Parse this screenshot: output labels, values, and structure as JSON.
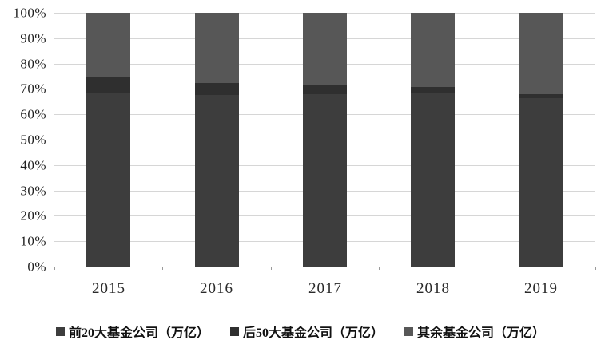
{
  "chart_data": {
    "type": "bar",
    "stacked": true,
    "percent_stacked": true,
    "title": "",
    "xlabel": "",
    "ylabel": "",
    "categories": [
      "2015",
      "2016",
      "2017",
      "2018",
      "2019"
    ],
    "series": [
      {
        "name": "前20大基金公司（万亿）",
        "color": "#3d3d3d",
        "values": [
          68.5,
          67.5,
          68.0,
          68.5,
          66.4
        ]
      },
      {
        "name": "后50大基金公司（万亿）",
        "color": "#2f2f2f",
        "values": [
          6.0,
          4.9,
          3.4,
          2.4,
          1.4
        ]
      },
      {
        "name": "其余基金公司（万亿）",
        "color": "#575757",
        "values": [
          25.5,
          27.6,
          28.6,
          29.1,
          32.2
        ]
      }
    ],
    "ylim": [
      0,
      100
    ],
    "y_tick_step": 10,
    "y_tick_labels": [
      "0%",
      "10%",
      "20%",
      "30%",
      "40%",
      "50%",
      "60%",
      "70%",
      "80%",
      "90%",
      "100%"
    ],
    "grid": true,
    "legend_position": "bottom"
  },
  "style": {
    "background": "#ffffff",
    "gridline_color": "#d6d6d6",
    "axis_line_color": "#9a9a9a",
    "tick_text_color": "#1f1f1f"
  }
}
